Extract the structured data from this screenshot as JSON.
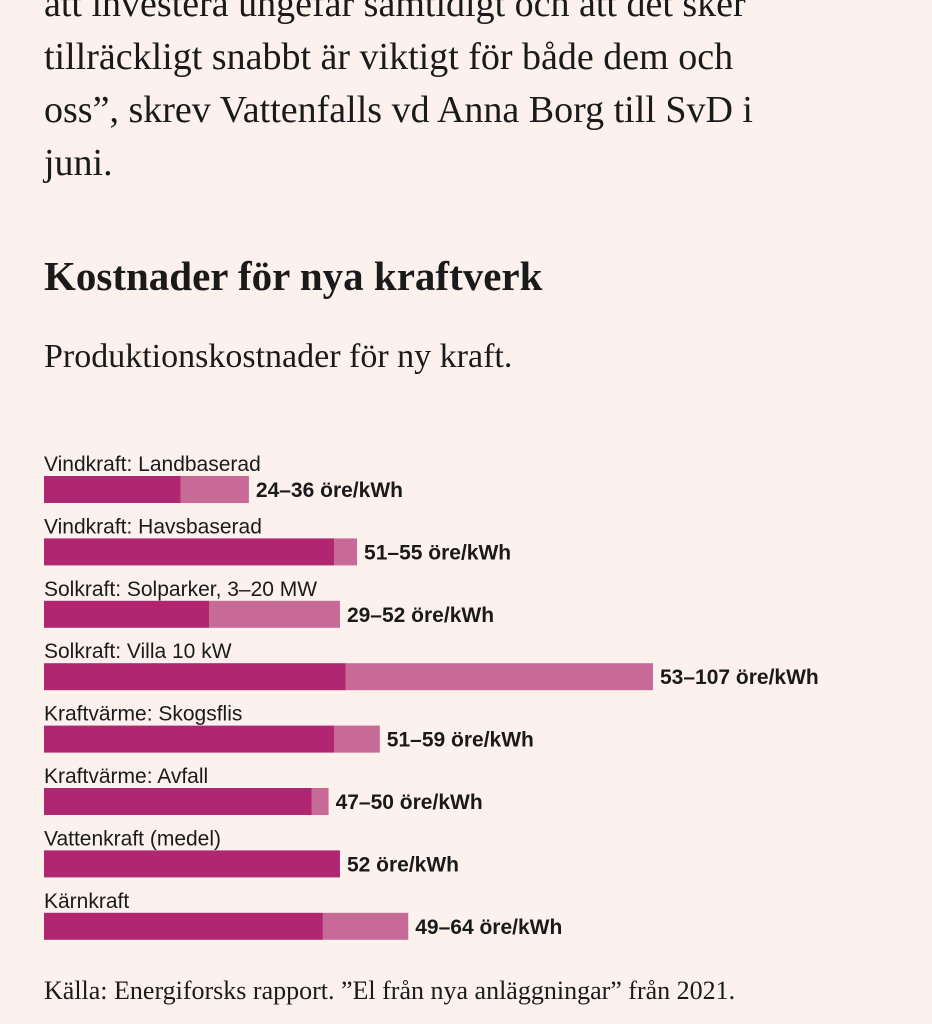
{
  "article": {
    "lines": [
      "att investera ungefär samtidigt och att det sker",
      "tillräckligt snabbt är viktigt för både dem och",
      "oss”, skrev Vattenfalls vd Anna Borg till SvD i",
      "juni."
    ]
  },
  "colors": {
    "low": "#b02670",
    "range": "#c86a97",
    "background": "#fcf1ec"
  },
  "chart_data": {
    "type": "bar",
    "orientation": "horizontal",
    "title": "Kostnader för nya kraftverk",
    "subtitle": "Produktionskostnader för ny kraft.",
    "unit": "öre/kWh",
    "source": "Källa: Energiforsks rapport. ”El från nya anläggningar” från 2021.",
    "categories": [
      "Vindkraft: Landbaserad",
      "Vindkraft: Havsbaserad",
      "Solkraft: Solparker, 3–20 MW",
      "Solkraft: Villa 10 kW",
      "Kraftvärme: Skogsflis",
      "Kraftvärme: Avfall",
      "Vattenkraft (medel)",
      "Kärnkraft"
    ],
    "series": [
      {
        "values": [
          24,
          51,
          29,
          53,
          51,
          47,
          52,
          49
        ]
      },
      {
        "values": [
          36,
          55,
          52,
          107,
          59,
          50,
          52,
          64
        ]
      }
    ],
    "value_labels": [
      "24–36 öre/kWh",
      "51–55 öre/kWh",
      "29–52 öre/kWh",
      "53–107 öre/kWh",
      "51–59 öre/kWh",
      "47–50 öre/kWh",
      "52 öre/kWh",
      "49–64 öre/kWh"
    ],
    "xlim": [
      0,
      107
    ],
    "grid": false,
    "legend": "none"
  }
}
